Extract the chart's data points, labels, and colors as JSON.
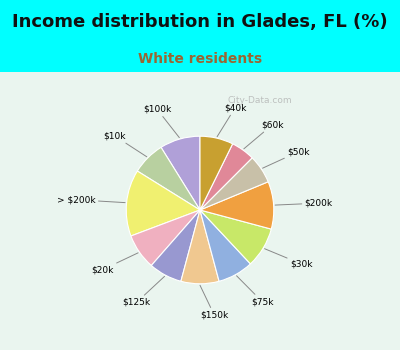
{
  "title": "Income distribution in Glades, FL (%)",
  "subtitle": "White residents",
  "background_top": "#00FFFF",
  "background_chart": "#eaf5ef",
  "labels": [
    "$100k",
    "$10k",
    "> $200k",
    "$20k",
    "$125k",
    "$150k",
    "$75k",
    "$30k",
    "$200k",
    "$50k",
    "$60k",
    "$40k"
  ],
  "values": [
    8.5,
    7.0,
    14.0,
    7.5,
    7.0,
    8.0,
    7.5,
    8.5,
    10.0,
    6.0,
    5.0,
    7.0
  ],
  "colors": [
    "#b0a0d8",
    "#b8d0a0",
    "#f0f070",
    "#f0b0c0",
    "#9898d0",
    "#f0c890",
    "#90b0e0",
    "#c8e868",
    "#f0a040",
    "#c8c0a8",
    "#e08898",
    "#c8a030"
  ],
  "title_fontsize": 13,
  "subtitle_fontsize": 10,
  "subtitle_color": "#996633",
  "watermark": "City-Data.com"
}
